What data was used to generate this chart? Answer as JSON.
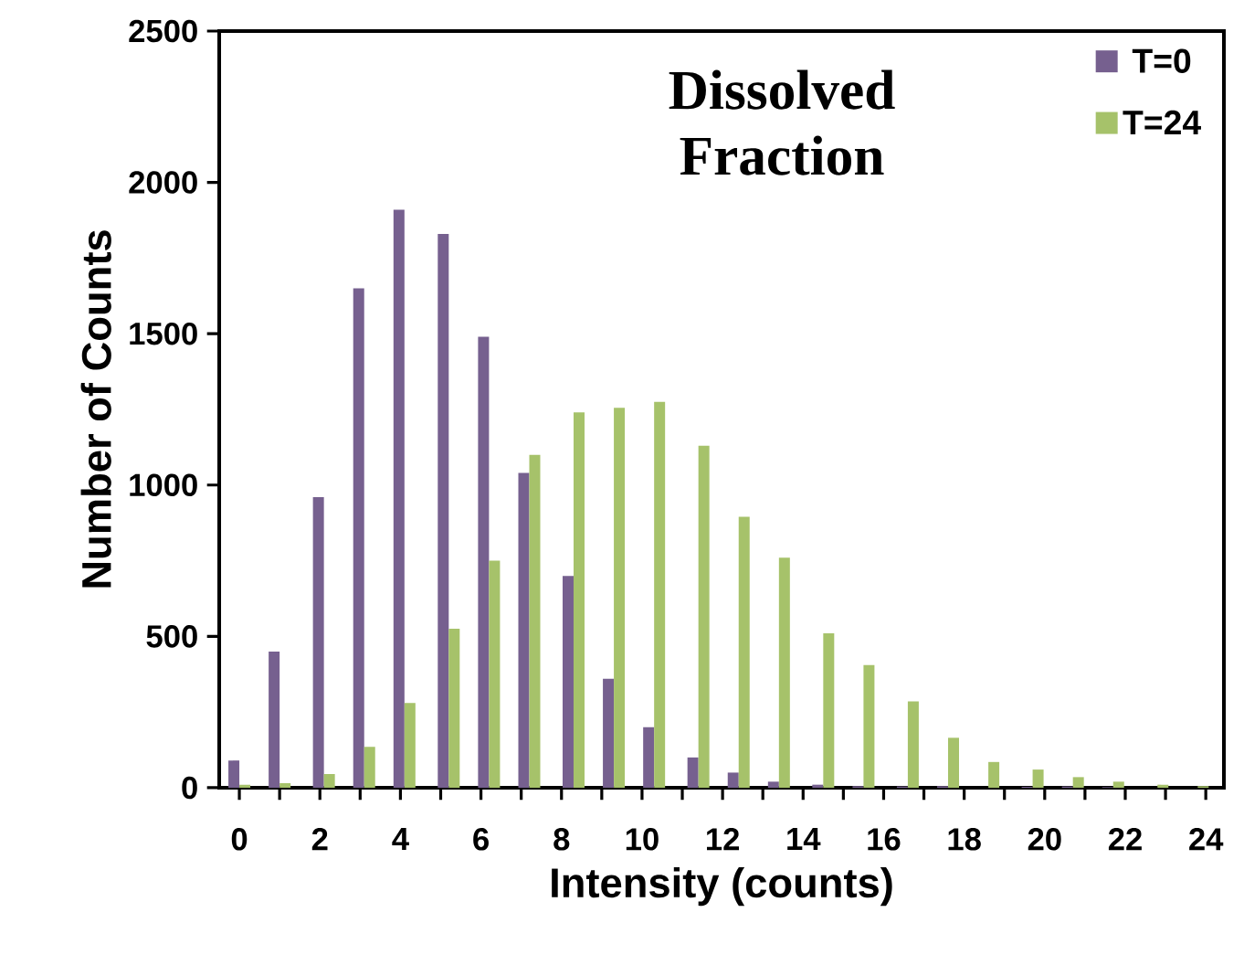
{
  "chart_data": {
    "type": "bar",
    "title": "Dissolved Fraction",
    "xlabel": "Intensity (counts)",
    "ylabel": "Number of Counts",
    "x": [
      0,
      1,
      2.1,
      3.1,
      4.1,
      5.2,
      6.2,
      7.2,
      8.3,
      9.3,
      10.3,
      11.4,
      12.4,
      13.4,
      14.5,
      15.5,
      16.6,
      17.6,
      18.6,
      19.7,
      20.7,
      21.7,
      22.8,
      23.8
    ],
    "series": [
      {
        "name": "T=0",
        "color": "#76608f",
        "values": [
          90,
          450,
          960,
          1650,
          1910,
          1830,
          1490,
          1040,
          700,
          360,
          200,
          100,
          50,
          20,
          10,
          5,
          4,
          5,
          0,
          3,
          4,
          2,
          0,
          0
        ]
      },
      {
        "name": "T=24",
        "color": "#a6c26a",
        "values": [
          10,
          15,
          45,
          135,
          280,
          525,
          750,
          1100,
          1240,
          1255,
          1275,
          1130,
          895,
          760,
          510,
          405,
          285,
          165,
          85,
          60,
          35,
          20,
          10,
          5
        ]
      }
    ],
    "xlim": [
      -0.5,
      24.45
    ],
    "ylim": [
      0,
      2500
    ],
    "xticks": [
      0,
      {
        "value": 1,
        "label": null
      },
      2,
      {
        "value": 3,
        "label": null
      },
      4,
      {
        "value": 5,
        "label": null
      },
      6,
      {
        "value": 7,
        "label": null
      },
      8,
      {
        "value": 9,
        "label": null
      },
      10,
      {
        "value": 11,
        "label": null
      },
      12,
      {
        "value": 13,
        "label": null
      },
      14,
      {
        "value": 15,
        "label": null
      },
      16,
      {
        "value": 17,
        "label": null
      },
      18,
      {
        "value": 19,
        "label": null
      },
      20,
      {
        "value": 21,
        "label": null
      },
      22,
      {
        "value": 23,
        "label": null
      },
      24
    ],
    "yticks": [
      0,
      500,
      1000,
      1500,
      2000,
      2500
    ],
    "legend": "top right",
    "grid": false
  }
}
